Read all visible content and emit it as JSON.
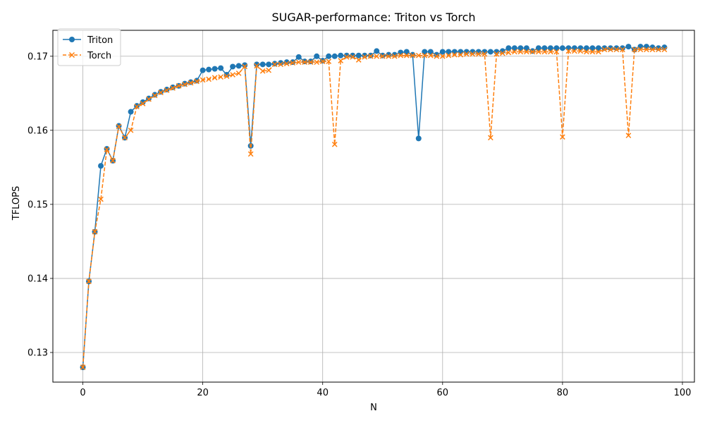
{
  "chart_data": {
    "type": "line",
    "title": "SUGAR-performance: Triton vs Torch",
    "xlabel": "N",
    "ylabel": "TFLOPS",
    "xlim": [
      -5,
      102
    ],
    "ylim": [
      0.126,
      0.1735
    ],
    "xticks": [
      0,
      20,
      40,
      60,
      80,
      100
    ],
    "yticks": [
      0.13,
      0.14,
      0.15,
      0.16,
      0.17
    ],
    "ytick_labels": [
      "0.13",
      "0.14",
      "0.15",
      "0.16",
      "0.17"
    ],
    "grid": true,
    "legend_position": "upper-left",
    "series": [
      {
        "name": "Triton",
        "color": "#1f77b4",
        "linestyle": "solid",
        "marker": "circle",
        "values": [
          0.128,
          0.1396,
          0.1463,
          0.1552,
          0.1575,
          0.1559,
          0.1606,
          0.159,
          0.1625,
          0.1633,
          0.1638,
          0.1643,
          0.1648,
          0.1652,
          0.1655,
          0.1658,
          0.166,
          0.1663,
          0.1665,
          0.1667,
          0.1681,
          0.1682,
          0.1683,
          0.1684,
          0.1675,
          0.1686,
          0.1687,
          0.1688,
          0.1579,
          0.1689,
          0.1689,
          0.1689,
          0.169,
          0.1691,
          0.1692,
          0.1692,
          0.1699,
          0.1693,
          0.1693,
          0.17,
          0.1694,
          0.17,
          0.17,
          0.1701,
          0.1701,
          0.1701,
          0.1701,
          0.1701,
          0.1701,
          0.1707,
          0.1701,
          0.1702,
          0.1702,
          0.1705,
          0.1706,
          0.1702,
          0.1589,
          0.1706,
          0.1706,
          0.1702,
          0.1706,
          0.1706,
          0.1706,
          0.1706,
          0.1706,
          0.1706,
          0.1706,
          0.1706,
          0.1706,
          0.1706,
          0.1707,
          0.1711,
          0.1711,
          0.1711,
          0.1711,
          0.1707,
          0.1711,
          0.1711,
          0.1711,
          0.1711,
          0.1711,
          0.1711,
          0.1711,
          0.1711,
          0.1711,
          0.1711,
          0.1711,
          0.1711,
          0.1711,
          0.1711,
          0.1711,
          0.1713,
          0.1709,
          0.1713,
          0.1713,
          0.1712,
          0.1711,
          0.1712
        ]
      },
      {
        "name": "Torch",
        "color": "#ff7f0e",
        "linestyle": "dashed",
        "marker": "x",
        "values": [
          0.128,
          0.1396,
          0.1463,
          0.1507,
          0.1574,
          0.1559,
          0.1605,
          0.159,
          0.16,
          0.1632,
          0.1636,
          0.1642,
          0.1647,
          0.1651,
          0.1654,
          0.1657,
          0.166,
          0.1662,
          0.1664,
          0.1666,
          0.1668,
          0.1669,
          0.1671,
          0.1672,
          0.1673,
          0.1675,
          0.1677,
          0.1686,
          0.1568,
          0.1687,
          0.168,
          0.1681,
          0.1689,
          0.1689,
          0.169,
          0.1691,
          0.1692,
          0.1692,
          0.1692,
          0.1692,
          0.1693,
          0.1693,
          0.1581,
          0.1694,
          0.1699,
          0.1699,
          0.1695,
          0.1699,
          0.17,
          0.17,
          0.17,
          0.17,
          0.17,
          0.1701,
          0.1701,
          0.1701,
          0.1701,
          0.1701,
          0.1701,
          0.17,
          0.17,
          0.1701,
          0.1702,
          0.1702,
          0.1703,
          0.1703,
          0.1703,
          0.1703,
          0.159,
          0.1703,
          0.1704,
          0.1705,
          0.1706,
          0.1706,
          0.1706,
          0.1706,
          0.1706,
          0.1706,
          0.1706,
          0.1706,
          0.1591,
          0.1707,
          0.1707,
          0.1707,
          0.1706,
          0.1706,
          0.1706,
          0.1709,
          0.1709,
          0.1709,
          0.1709,
          0.1593,
          0.1709,
          0.1709,
          0.1709,
          0.1709,
          0.1709,
          0.1709
        ]
      }
    ]
  }
}
